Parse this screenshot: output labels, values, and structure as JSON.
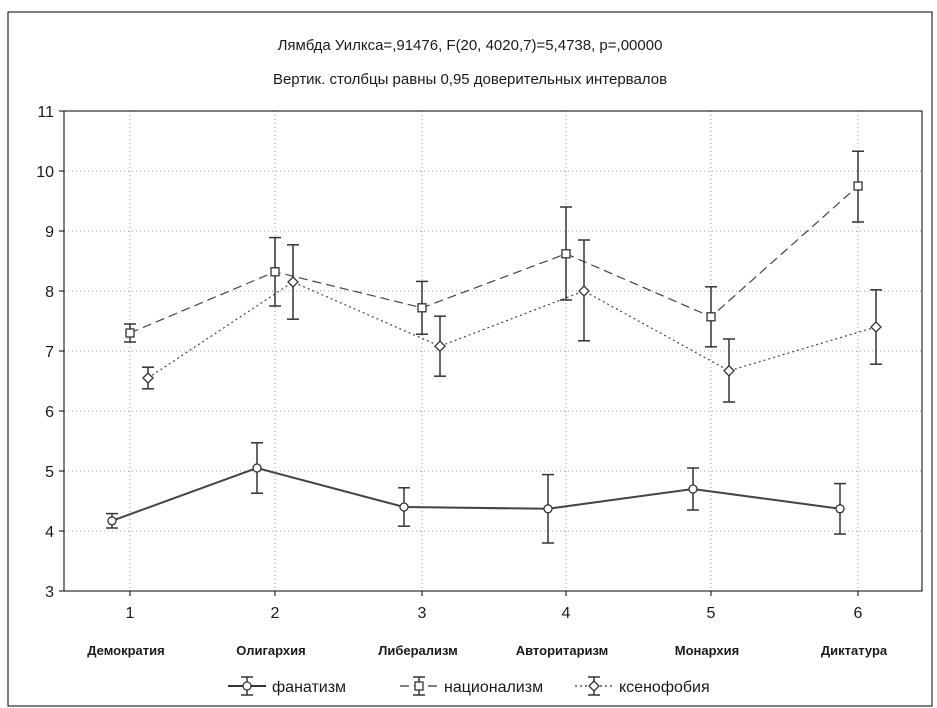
{
  "chart_data": {
    "type": "line",
    "title": "Лямбда Уилкса=,91476, F(20, 4020,7)=5,4738, p=,00000",
    "subtitle": "Вертик. столбцы равны 0,95 доверительных интервалов",
    "x": [
      1,
      2,
      3,
      4,
      5,
      6
    ],
    "x_tick_labels": [
      "1",
      "2",
      "3",
      "4",
      "5",
      "6"
    ],
    "categories": [
      "Демократия",
      "Олигархия",
      "Либерализм",
      "Авторитаризм",
      "Монархия",
      "Диктатура"
    ],
    "ylim": [
      3,
      11
    ],
    "yticks": [
      3,
      4,
      5,
      6,
      7,
      8,
      9,
      10,
      11
    ],
    "grid": true,
    "legend_position": "bottom",
    "series": [
      {
        "name": "фанатизм",
        "line_style": "solid",
        "marker": "circle",
        "color": "#444444",
        "values": [
          4.17,
          5.05,
          4.4,
          4.37,
          4.7,
          4.37
        ],
        "ci_low": [
          4.05,
          4.63,
          4.08,
          3.8,
          4.35,
          3.95
        ],
        "ci_high": [
          4.29,
          5.47,
          4.72,
          4.94,
          5.05,
          4.79
        ]
      },
      {
        "name": "национализм",
        "line_style": "dashed",
        "marker": "square",
        "color": "#444444",
        "values": [
          7.3,
          8.32,
          7.72,
          8.62,
          7.57,
          9.75
        ],
        "ci_low": [
          7.15,
          7.75,
          7.28,
          7.85,
          7.07,
          9.15
        ],
        "ci_high": [
          7.45,
          8.89,
          8.16,
          9.4,
          8.07,
          10.33
        ]
      },
      {
        "name": "ксенофобия",
        "line_style": "dotted",
        "marker": "diamond",
        "color": "#444444",
        "values": [
          6.55,
          8.15,
          7.08,
          8.0,
          6.67,
          7.4
        ],
        "ci_low": [
          6.37,
          7.53,
          6.58,
          7.17,
          6.15,
          6.78
        ],
        "ci_high": [
          6.73,
          8.77,
          7.58,
          8.85,
          7.2,
          8.02
        ]
      }
    ]
  }
}
